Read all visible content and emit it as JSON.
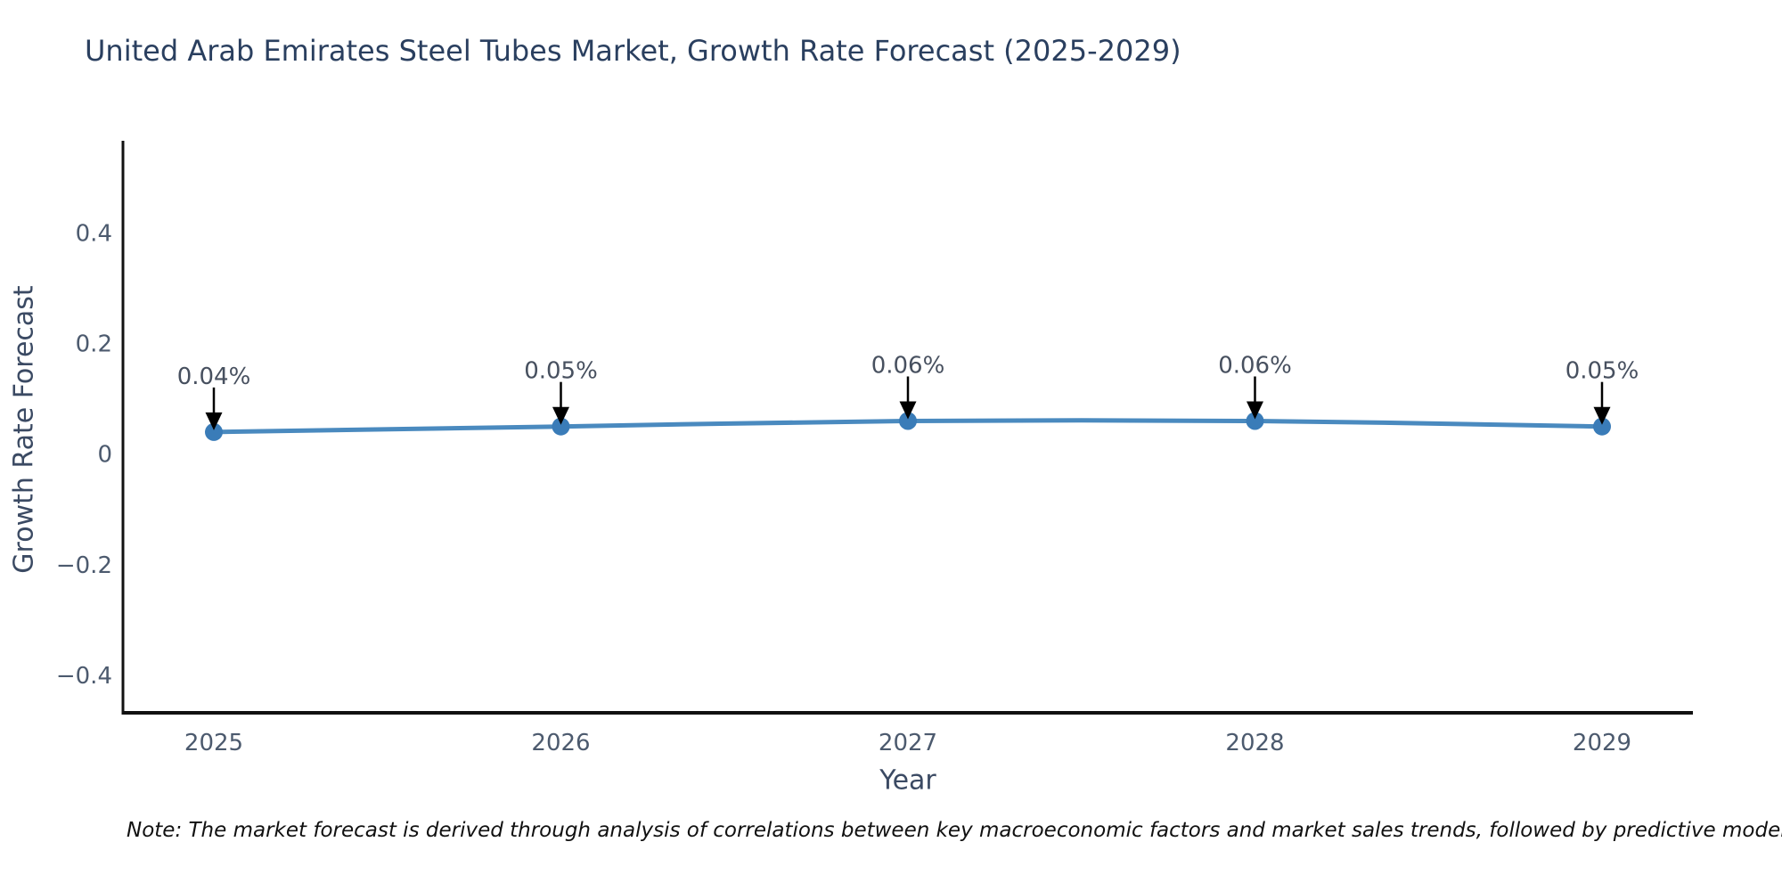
{
  "title": "United Arab Emirates Steel Tubes Market, Growth Rate Forecast (2025-2029)",
  "note": "Note: The market forecast is derived through analysis of correlations between key macroeconomic factors and market sales trends, followed by predictive modeling to project future sa",
  "chart_data": {
    "type": "line",
    "title": "United Arab Emirates Steel Tubes Market, Growth Rate Forecast (2025-2029)",
    "categories": [
      "2025",
      "2026",
      "2027",
      "2028",
      "2029"
    ],
    "values": [
      0.04,
      0.05,
      0.06,
      0.06,
      0.05
    ],
    "point_labels": [
      "0.04%",
      "0.05%",
      "0.06%",
      "0.06%",
      "0.05%"
    ],
    "xlabel": "Year",
    "ylabel": "Growth Rate Forecast",
    "yticks": [
      {
        "value": -0.4,
        "label": "−0.4"
      },
      {
        "value": -0.2,
        "label": "−0.2"
      },
      {
        "value": 0,
        "label": "0"
      },
      {
        "value": 0.2,
        "label": "0.2"
      },
      {
        "value": 0.4,
        "label": "0.4"
      }
    ],
    "ylim": [
      -0.468,
      0.567
    ],
    "grid": false,
    "legend": "none",
    "annotations_have_arrows": true,
    "colors": {
      "line": "#4a8abf",
      "marker": "#3a7cb8",
      "arrow": "#000000"
    }
  },
  "colors": {
    "title": "#2a3f5f",
    "axis_title": "#3b4a63",
    "tick": "#4c5a6e",
    "annotation": "#47505f",
    "axis_line": "#111111",
    "note": "#111111",
    "background": "#ffffff"
  }
}
